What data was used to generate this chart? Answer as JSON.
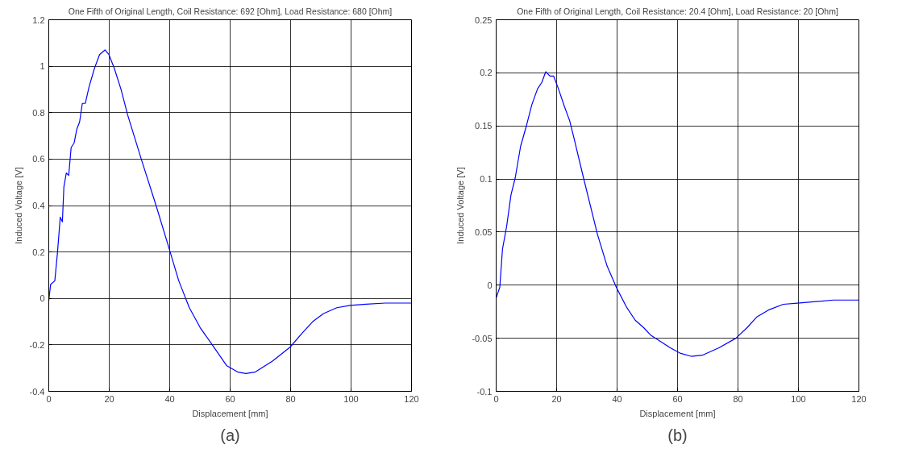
{
  "chart_data": [
    {
      "type": "line",
      "title": "One Fifth of Original Length, Coil Resistance: 692 [Ohm], Load Resistance: 680 [Ohm]",
      "xlabel": "Displacement [mm]",
      "ylabel": "Induced Voltage [V]",
      "annotations": [
        "(a)"
      ],
      "grid": true,
      "xlim": [
        0,
        120
      ],
      "xticks": [
        0,
        20,
        40,
        60,
        80,
        100,
        120
      ],
      "ylim": [
        -0.4,
        1.2
      ],
      "yticks": [
        -0.4,
        -0.2,
        0,
        0.2,
        0.4,
        0.6,
        0.8,
        1,
        1.2
      ],
      "series": [
        {
          "color": "#0000ff",
          "x": [
            0,
            0.6,
            2.0,
            2.9,
            3.8,
            4.5,
            5.0,
            5.8,
            6.6,
            7.4,
            8.4,
            9.3,
            10.2,
            11.1,
            12.1,
            13.3,
            15.1,
            16.8,
            18.6,
            19.9,
            21.7,
            23.9,
            26.1,
            30.6,
            35.5,
            39.7,
            43.0,
            46.5,
            50.1,
            54.1,
            58.9,
            62.5,
            65.2,
            68.3,
            74.0,
            79.8,
            83.8,
            87.3,
            90.9,
            95.3,
            99.7,
            105.0,
            111.3,
            120
          ],
          "values": [
            -0.01,
            0.06,
            0.076,
            0.2,
            0.35,
            0.33,
            0.48,
            0.54,
            0.53,
            0.65,
            0.67,
            0.73,
            0.76,
            0.84,
            0.84,
            0.91,
            0.99,
            1.05,
            1.07,
            1.05,
            0.99,
            0.9,
            0.79,
            0.6,
            0.4,
            0.22,
            0.076,
            -0.04,
            -0.126,
            -0.2,
            -0.29,
            -0.317,
            -0.323,
            -0.317,
            -0.27,
            -0.21,
            -0.15,
            -0.1,
            -0.065,
            -0.04,
            -0.03,
            -0.025,
            -0.02,
            -0.02
          ]
        }
      ]
    },
    {
      "type": "line",
      "title": "One Fifth of Original Length, Coil Resistance: 20.4 [Ohm], Load Resistance: 20 [Ohm]",
      "xlabel": "Displacement [mm]",
      "ylabel": "Induced Voltage [V]",
      "annotations": [
        "(b)"
      ],
      "grid": true,
      "xlim": [
        0,
        120
      ],
      "xticks": [
        0,
        20,
        40,
        60,
        80,
        100,
        120
      ],
      "ylim": [
        -0.1,
        0.25
      ],
      "yticks": [
        -0.1,
        -0.05,
        0,
        0.05,
        0.1,
        0.15,
        0.2,
        0.25
      ],
      "series": [
        {
          "color": "#0000ff",
          "x": [
            0,
            1.2,
            2.1,
            3.5,
            4.9,
            6.3,
            8.1,
            10.0,
            11.8,
            13.7,
            15.1,
            16.4,
            17.8,
            19.0,
            20.6,
            22.5,
            24.3,
            25.7,
            28.9,
            33.5,
            36.7,
            40.0,
            43.2,
            46.0,
            48.8,
            51.1,
            54.3,
            57.6,
            60.8,
            64.5,
            68.2,
            73.7,
            79.3,
            83.0,
            86.2,
            90.4,
            95.0,
            99.6,
            111.6,
            120
          ],
          "values": [
            -0.012,
            -0.002,
            0.034,
            0.056,
            0.085,
            0.101,
            0.131,
            0.15,
            0.17,
            0.185,
            0.191,
            0.201,
            0.197,
            0.197,
            0.185,
            0.169,
            0.155,
            0.139,
            0.101,
            0.048,
            0.018,
            -0.0035,
            -0.021,
            -0.033,
            -0.04,
            -0.047,
            -0.053,
            -0.059,
            -0.064,
            -0.067,
            -0.066,
            -0.059,
            -0.05,
            -0.04,
            -0.03,
            -0.023,
            -0.018,
            -0.017,
            -0.014,
            -0.014
          ]
        }
      ]
    }
  ]
}
